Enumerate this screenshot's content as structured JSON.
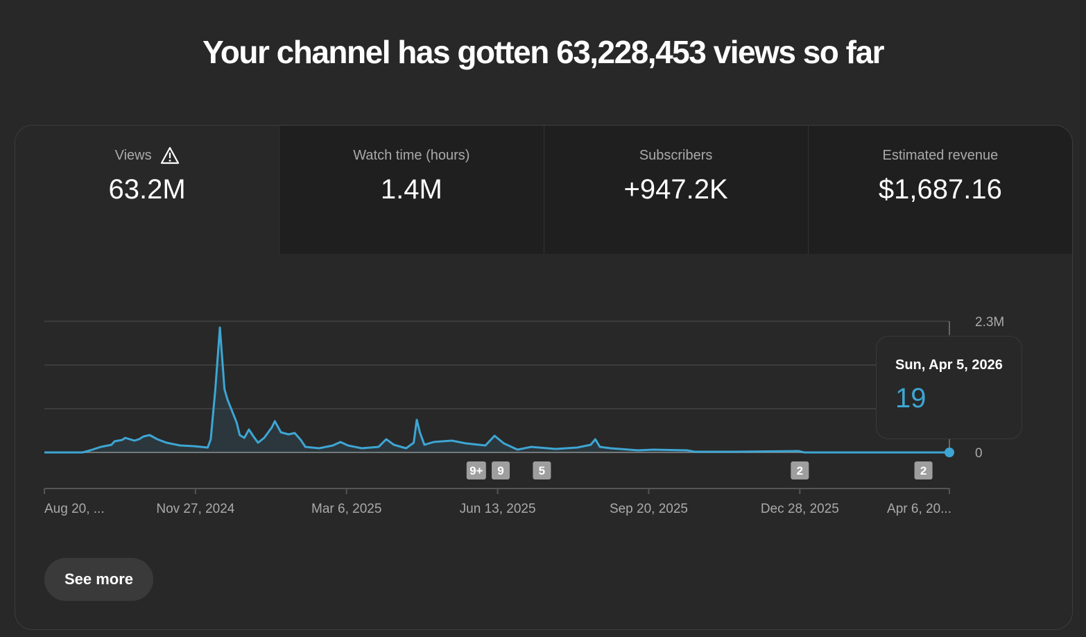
{
  "headline": "Your channel has gotten 63,228,453 views so far",
  "metrics": [
    {
      "label": "Views",
      "value": "63.2M",
      "icon": "warning-icon"
    },
    {
      "label": "Watch time (hours)",
      "value": "1.4M"
    },
    {
      "label": "Subscribers",
      "value": "+947.2K"
    },
    {
      "label": "Estimated revenue",
      "value": "$1,687.16"
    }
  ],
  "tooltip": {
    "date": "Sun, Apr 5, 2026",
    "value": "19"
  },
  "see_more": "See more",
  "colors": {
    "line": "#3ea6d4",
    "background": "#282828"
  },
  "chart_data": {
    "type": "line",
    "title": "Views",
    "x_unit": "days since Aug 20, 2024",
    "ylim": [
      0,
      2300000
    ],
    "y_tick_labels": [
      "0",
      "2.3M"
    ],
    "x_tick_labels": [
      {
        "day": 0,
        "label": "Aug 20, ..."
      },
      {
        "day": 99,
        "label": "Nov 27, 2024"
      },
      {
        "day": 198,
        "label": "Mar 6, 2025"
      },
      {
        "day": 297,
        "label": "Jun 13, 2025"
      },
      {
        "day": 396,
        "label": "Sep 20, 2025"
      },
      {
        "day": 495,
        "label": "Dec 28, 2025"
      },
      {
        "day": 593,
        "label": "Apr 6, 20..."
      }
    ],
    "annotations": [
      {
        "day": 283,
        "label": "9+"
      },
      {
        "day": 299,
        "label": "9"
      },
      {
        "day": 326,
        "label": "5"
      },
      {
        "day": 495,
        "label": "2"
      },
      {
        "day": 576,
        "label": "2"
      }
    ],
    "x": [
      0,
      25,
      30,
      37,
      44,
      46,
      51,
      53,
      59,
      62,
      65,
      69,
      74,
      80,
      89,
      98,
      107,
      109,
      112,
      115,
      118,
      120,
      124,
      126,
      128,
      131,
      134,
      137,
      140,
      144,
      149,
      151,
      155,
      160,
      164,
      168,
      171,
      180,
      189,
      194,
      199,
      208,
      219,
      224,
      229,
      237,
      242,
      244,
      246,
      249,
      255,
      267,
      276,
      289,
      295,
      301,
      310,
      319,
      335,
      349,
      358,
      361,
      364,
      371,
      389,
      399,
      421,
      426,
      453,
      494,
      498,
      593
    ],
    "values": [
      0,
      0,
      37000,
      97000,
      134000,
      195000,
      219000,
      256000,
      207000,
      231000,
      280000,
      304000,
      231000,
      170000,
      122000,
      110000,
      85000,
      231000,
      1107000,
      2190000,
      1107000,
      925000,
      657000,
      523000,
      304000,
      256000,
      402000,
      280000,
      170000,
      256000,
      438000,
      548000,
      353000,
      316000,
      341000,
      219000,
      97000,
      73000,
      122000,
      183000,
      122000,
      73000,
      97000,
      231000,
      134000,
      73000,
      170000,
      572000,
      353000,
      134000,
      183000,
      207000,
      160000,
      122000,
      292000,
      160000,
      49000,
      97000,
      61000,
      85000,
      134000,
      231000,
      97000,
      73000,
      37000,
      49000,
      37000,
      12000,
      12000,
      24000,
      0,
      19
    ],
    "highlight": {
      "day": 593,
      "value": 19
    }
  }
}
